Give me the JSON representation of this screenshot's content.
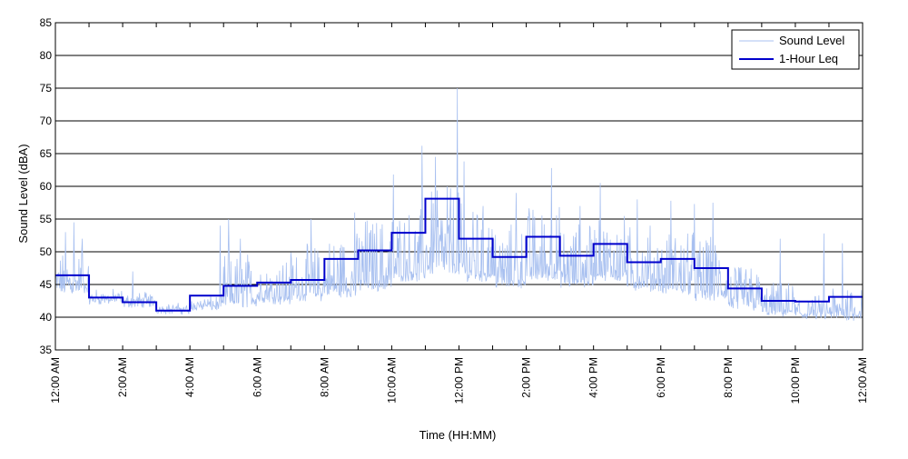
{
  "chart_data": {
    "type": "line",
    "title": "",
    "xlabel": "Time (HH:MM)",
    "ylabel": "Sound Level (dBA)",
    "ylim": [
      35,
      85
    ],
    "xlim_hours": [
      0,
      24
    ],
    "yticks": [
      35,
      40,
      45,
      50,
      55,
      60,
      65,
      70,
      75,
      80,
      85
    ],
    "xtick_hours": [
      0,
      2,
      4,
      6,
      8,
      10,
      12,
      14,
      16,
      18,
      20,
      22,
      24
    ],
    "xtick_labels": [
      "12:00 AM",
      "2:00 AM",
      "4:00 AM",
      "6:00 AM",
      "8:00 AM",
      "10:00 AM",
      "12:00 PM",
      "2:00 PM",
      "4:00 PM",
      "6:00 PM",
      "8:00 PM",
      "10:00 PM",
      "12:00 AM"
    ],
    "grid": "horizontal",
    "legend_position": "top-right",
    "legend": [
      "Sound Level",
      "1-Hour Leq"
    ],
    "colors": {
      "sound_level": "#a8c0f0",
      "leq": "#0000cc",
      "grid": "#000000"
    },
    "series": [
      {
        "name": "1-Hour Leq",
        "style": "step",
        "hour_start": [
          0,
          1,
          2,
          3,
          4,
          5,
          6,
          7,
          8,
          9,
          10,
          11,
          12,
          13,
          14,
          15,
          16,
          17,
          18,
          19,
          20,
          21,
          22,
          23
        ],
        "values": [
          46.4,
          43.0,
          42.3,
          41.0,
          43.3,
          44.8,
          45.3,
          45.7,
          48.9,
          50.2,
          52.9,
          58.1,
          52.0,
          49.2,
          52.3,
          49.4,
          51.2,
          48.4,
          48.9,
          47.5,
          44.4,
          42.5,
          42.4,
          43.1
        ]
      },
      {
        "name": "Sound Level",
        "style": "line",
        "hourly_profile": {
          "hour_start": [
            0,
            1,
            2,
            3,
            4,
            5,
            6,
            7,
            8,
            9,
            10,
            11,
            12,
            13,
            14,
            15,
            16,
            17,
            18,
            19,
            20,
            21,
            22,
            23
          ],
          "baseline": [
            44,
            42.5,
            42,
            41,
            41.5,
            42,
            42.5,
            43,
            43.5,
            44.5,
            46,
            47,
            46,
            45,
            46,
            45,
            46,
            44.5,
            44,
            43,
            41.5,
            40.5,
            40,
            40
          ],
          "spread": [
            4,
            1,
            1,
            0.5,
            1,
            5,
            4,
            5,
            6,
            7,
            7,
            8,
            7,
            6,
            7,
            6,
            6,
            6,
            6,
            6,
            4,
            3,
            2,
            3
          ]
        },
        "peaks": [
          {
            "hour": 0.3,
            "value": 53
          },
          {
            "hour": 0.55,
            "value": 54.5
          },
          {
            "hour": 0.8,
            "value": 52
          },
          {
            "hour": 2.3,
            "value": 47
          },
          {
            "hour": 4.9,
            "value": 54
          },
          {
            "hour": 5.15,
            "value": 55
          },
          {
            "hour": 5.5,
            "value": 52
          },
          {
            "hour": 7.6,
            "value": 55
          },
          {
            "hour": 8.9,
            "value": 56
          },
          {
            "hour": 10.05,
            "value": 61.8
          },
          {
            "hour": 10.9,
            "value": 66.2
          },
          {
            "hour": 11.3,
            "value": 64.5
          },
          {
            "hour": 11.65,
            "value": 60
          },
          {
            "hour": 11.95,
            "value": 75
          },
          {
            "hour": 12.15,
            "value": 63.8
          },
          {
            "hour": 13.7,
            "value": 59
          },
          {
            "hour": 14.75,
            "value": 62.8
          },
          {
            "hour": 15.6,
            "value": 57
          },
          {
            "hour": 16.2,
            "value": 60.5
          },
          {
            "hour": 17.3,
            "value": 58
          },
          {
            "hour": 18.3,
            "value": 57.8
          },
          {
            "hour": 19.0,
            "value": 57.3
          },
          {
            "hour": 19.55,
            "value": 57.5
          },
          {
            "hour": 21.55,
            "value": 52
          },
          {
            "hour": 22.85,
            "value": 52.8
          },
          {
            "hour": 23.4,
            "value": 51.3
          }
        ]
      }
    ]
  }
}
